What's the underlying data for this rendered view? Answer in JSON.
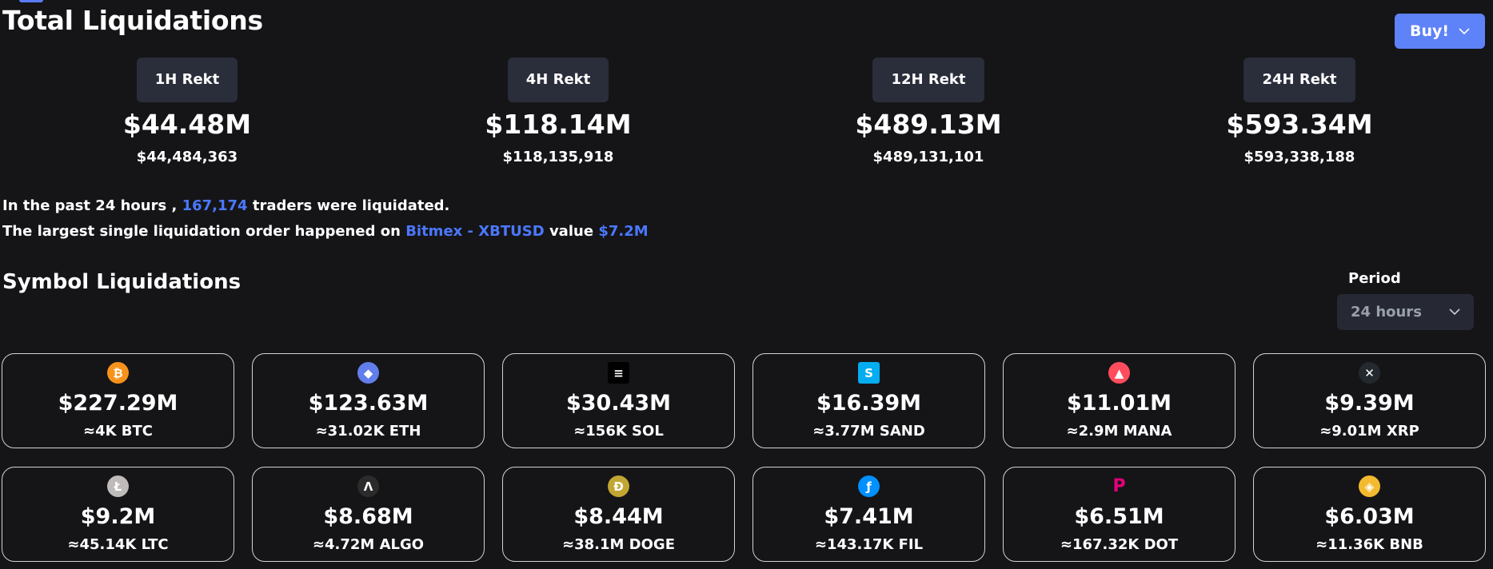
{
  "title": "Total Liquidations",
  "buy_button": {
    "label": "Buy!"
  },
  "rekt": [
    {
      "label": "1H Rekt",
      "short": "$44.48M",
      "full": "$44,484,363"
    },
    {
      "label": "4H Rekt",
      "short": "$118.14M",
      "full": "$118,135,918"
    },
    {
      "label": "12H Rekt",
      "short": "$489.13M",
      "full": "$489,131,101"
    },
    {
      "label": "24H Rekt",
      "short": "$593.34M",
      "full": "$593,338,188"
    }
  ],
  "summary": {
    "line1_prefix": "In the past 24 hours ,",
    "traders": "167,174",
    "line1_suffix": "traders were liquidated.",
    "line2_prefix": "The largest single liquidation order happened on",
    "exchange": "Bitmex - XBTUSD",
    "line2_mid": "value",
    "value": "$7.2M"
  },
  "symbols_title": "Symbol Liquidations",
  "period": {
    "label": "Period",
    "selected": "24 hours"
  },
  "symbols": [
    {
      "icon": "bitcoin-icon",
      "glyph": "₿",
      "color": "#f7931a",
      "value": "$227.29M",
      "amount": "≈4K BTC"
    },
    {
      "icon": "ethereum-icon",
      "glyph": "◆",
      "color": "#627eea",
      "value": "$123.63M",
      "amount": "≈31.02K ETH"
    },
    {
      "icon": "solana-icon",
      "glyph": "≡",
      "color": "#000000",
      "value": "$30.43M",
      "amount": "≈156K SOL"
    },
    {
      "icon": "sandbox-icon",
      "glyph": "S",
      "color": "#04adef",
      "value": "$16.39M",
      "amount": "≈3.77M SAND"
    },
    {
      "icon": "decentraland-icon",
      "glyph": "▲",
      "color": "#ff4d5e",
      "value": "$11.01M",
      "amount": "≈2.9M MANA"
    },
    {
      "icon": "xrp-icon",
      "glyph": "✕",
      "color": "#23292f",
      "value": "$9.39M",
      "amount": "≈9.01M XRP"
    },
    {
      "icon": "litecoin-icon",
      "glyph": "Ł",
      "color": "#bfbbbb",
      "value": "$9.2M",
      "amount": "≈45.14K LTC"
    },
    {
      "icon": "algorand-icon",
      "glyph": "Λ",
      "color": "#2b2b2b",
      "value": "$8.68M",
      "amount": "≈4.72M ALGO"
    },
    {
      "icon": "dogecoin-icon",
      "glyph": "Ð",
      "color": "#c2a633",
      "value": "$8.44M",
      "amount": "≈38.1M DOGE"
    },
    {
      "icon": "filecoin-icon",
      "glyph": "ƒ",
      "color": "#0090ff",
      "value": "$7.41M",
      "amount": "≈143.17K FIL"
    },
    {
      "icon": "polkadot-icon",
      "glyph": "P",
      "color": "#151518",
      "value": "$6.51M",
      "amount": "≈167.32K DOT"
    },
    {
      "icon": "bnb-icon",
      "glyph": "◈",
      "color": "#f3ba2f",
      "value": "$6.03M",
      "amount": "≈11.36K BNB"
    }
  ]
}
